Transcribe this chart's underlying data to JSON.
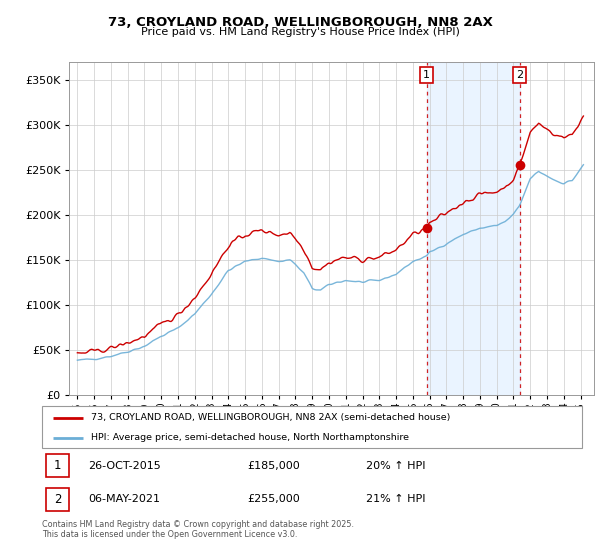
{
  "title_line1": "73, CROYLAND ROAD, WELLINGBOROUGH, NN8 2AX",
  "title_line2": "Price paid vs. HM Land Registry's House Price Index (HPI)",
  "legend_property": "73, CROYLAND ROAD, WELLINGBOROUGH, NN8 2AX (semi-detached house)",
  "legend_hpi": "HPI: Average price, semi-detached house, North Northamptonshire",
  "footnote": "Contains HM Land Registry data © Crown copyright and database right 2025.\nThis data is licensed under the Open Government Licence v3.0.",
  "annotation1": {
    "num": "1",
    "date": "26-OCT-2015",
    "price": "£185,000",
    "change": "20% ↑ HPI"
  },
  "annotation2": {
    "num": "2",
    "date": "06-MAY-2021",
    "price": "£255,000",
    "change": "21% ↑ HPI"
  },
  "property_color": "#cc0000",
  "hpi_color": "#6baed6",
  "hpi_fill_color": "#ddeeff",
  "vline_color": "#cc0000",
  "vline1_x": 2015.82,
  "vline2_x": 2021.37,
  "marker1_x": 2015.82,
  "marker1_y": 185000,
  "marker2_x": 2021.37,
  "marker2_y": 255000,
  "ylim": [
    0,
    370000
  ],
  "xlim": [
    1994.5,
    2025.8
  ],
  "yticks": [
    0,
    50000,
    100000,
    150000,
    200000,
    250000,
    300000,
    350000
  ],
  "xticks": [
    1995,
    1996,
    1997,
    1998,
    1999,
    2000,
    2001,
    2002,
    2003,
    2004,
    2005,
    2006,
    2007,
    2008,
    2009,
    2010,
    2011,
    2012,
    2013,
    2014,
    2015,
    2016,
    2017,
    2018,
    2019,
    2020,
    2021,
    2022,
    2023,
    2024,
    2025
  ]
}
